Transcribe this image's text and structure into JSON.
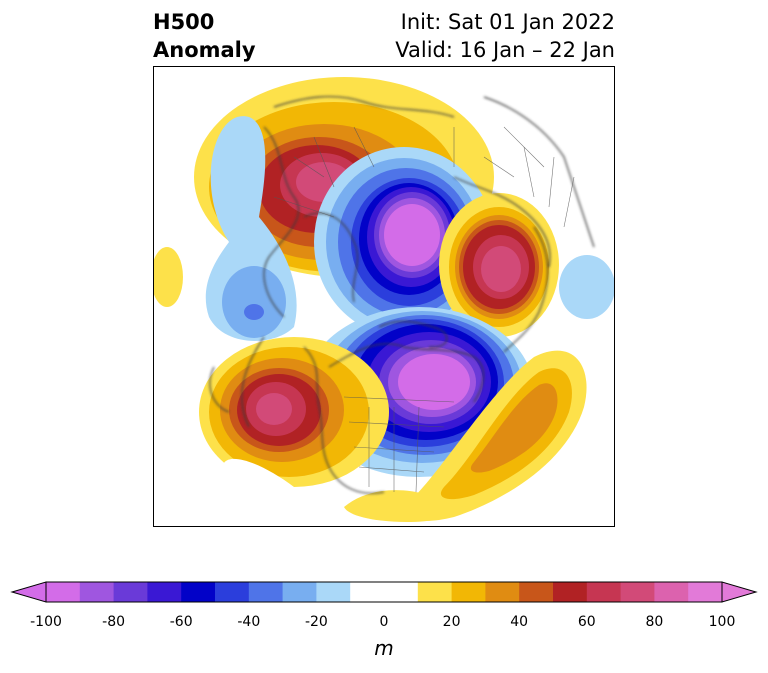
{
  "header": {
    "title_line1": "H500",
    "title_line2": "Anomaly",
    "init_line": "Init: Sat 01 Jan 2022",
    "valid_line": "Valid: 16 Jan – 22 Jan"
  },
  "colorbar": {
    "unit": "m",
    "ticks": [
      "-100",
      "-80",
      "-60",
      "-40",
      "-20",
      "0",
      "20",
      "40",
      "60",
      "80",
      "100"
    ],
    "bins": [
      {
        "color": "#d36ce8"
      },
      {
        "color": "#9f56e0"
      },
      {
        "color": "#6a3ad8"
      },
      {
        "color": "#3a18d4"
      },
      {
        "color": "#0202c8"
      },
      {
        "color": "#2b3edc"
      },
      {
        "color": "#4f74e8"
      },
      {
        "color": "#78aef0"
      },
      {
        "color": "#aad8f8"
      },
      {
        "color": "#ffffff"
      },
      {
        "color": "#ffffff"
      },
      {
        "color": "#fde14a"
      },
      {
        "color": "#f2b705"
      },
      {
        "color": "#e08c12"
      },
      {
        "color": "#c8561a"
      },
      {
        "color": "#b12224"
      },
      {
        "color": "#c63652"
      },
      {
        "color": "#d24a78"
      },
      {
        "color": "#dc62ae"
      },
      {
        "color": "#e27ad8"
      }
    ],
    "extend_low_color": "#d36ce8",
    "extend_high_color": "#e27ad8"
  },
  "map": {
    "projection": "north polar stereographic",
    "anomaly_centers": [
      {
        "region": "northern Europe",
        "sign": "positive",
        "peak_m": 80
      },
      {
        "region": "Arctic / northern Siberia",
        "sign": "negative",
        "peak_m": -100
      },
      {
        "region": "east Asia",
        "sign": "positive",
        "peak_m": 80
      },
      {
        "region": "eastern Canada / Hudson Bay",
        "sign": "negative",
        "peak_m": -100
      },
      {
        "region": "Gulf of Alaska / Pacific NW",
        "sign": "positive",
        "peak_m": 80
      },
      {
        "region": "central Pacific",
        "sign": "positive",
        "peak_m": 40
      },
      {
        "region": "North Atlantic",
        "sign": "negative",
        "peak_m": -40
      }
    ]
  }
}
